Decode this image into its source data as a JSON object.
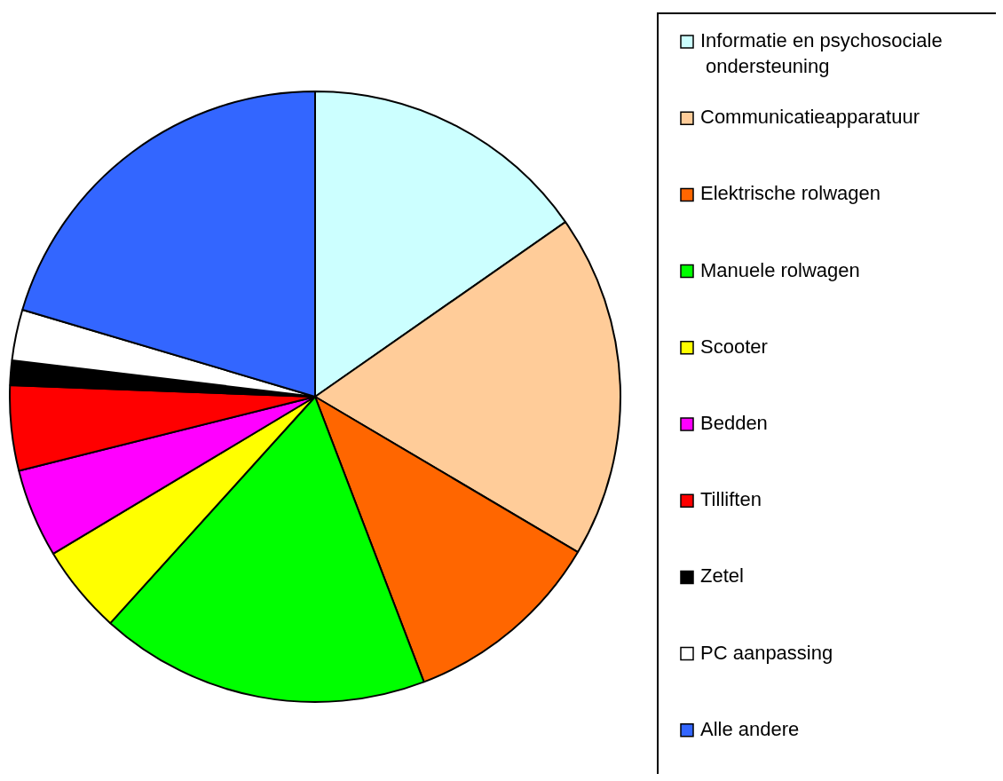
{
  "chart_data": {
    "type": "pie",
    "categories": [
      "Informatie en psychosociale ondersteuning",
      "Communicatieapparatuur",
      "Elektrische rolwagen",
      "Manuele rolwagen",
      "Scooter",
      "Bedden",
      "Tilliften",
      "Zetel",
      "PC aanpassing",
      "Alle andere"
    ],
    "values": [
      15.3,
      18.2,
      10.7,
      17.5,
      4.7,
      4.7,
      4.5,
      1.3,
      2.7,
      20.4
    ],
    "colors": [
      "#ccffff",
      "#ffcc99",
      "#ff6600",
      "#00ff00",
      "#ffff00",
      "#ff00ff",
      "#ff0000",
      "#000000",
      "#ffffff",
      "#3366ff"
    ],
    "legend": "right"
  }
}
